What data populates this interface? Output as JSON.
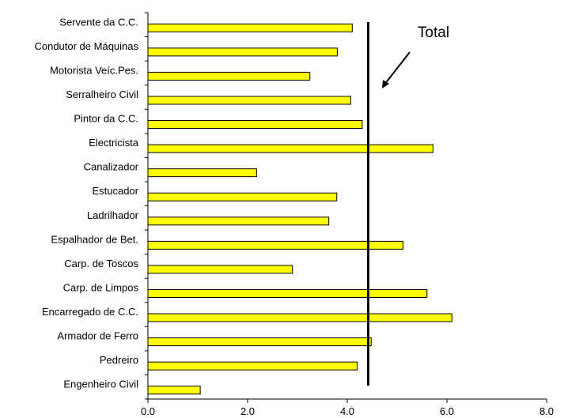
{
  "chart_data": {
    "type": "bar",
    "orientation": "horizontal",
    "title": "",
    "xlabel": "",
    "ylabel": "",
    "categories": [
      "Servente da C.C.",
      "Condutor de Máquinas",
      "Motorista Veíc.Pes.",
      "Serralheiro Civil",
      "Pintor da C.C.",
      "Electricista",
      "Canalizador",
      "Estucador",
      "Ladrilhador",
      "Espalhador de Bet.",
      "Carp. de Toscos",
      "Carp. de Limpos",
      "Encarregado de C.C.",
      "Armador de Ferro",
      "Pedreiro",
      "Engenheiro Civil"
    ],
    "values": [
      4.1,
      3.8,
      3.25,
      4.07,
      4.3,
      5.72,
      2.18,
      3.79,
      3.63,
      5.12,
      2.9,
      5.6,
      6.1,
      4.48,
      4.2,
      1.05
    ],
    "xlim": [
      0,
      8
    ],
    "xticks": [
      "0.0",
      "2.0",
      "4.0",
      "6.0",
      "8.0"
    ],
    "xtick_values": [
      0,
      2,
      4,
      6,
      8
    ],
    "reference_line": {
      "value": 4.42,
      "label": "Total"
    },
    "bar_color": "#ffff00",
    "bar_edge_color": "#000000",
    "grid": false,
    "legend": "none"
  }
}
